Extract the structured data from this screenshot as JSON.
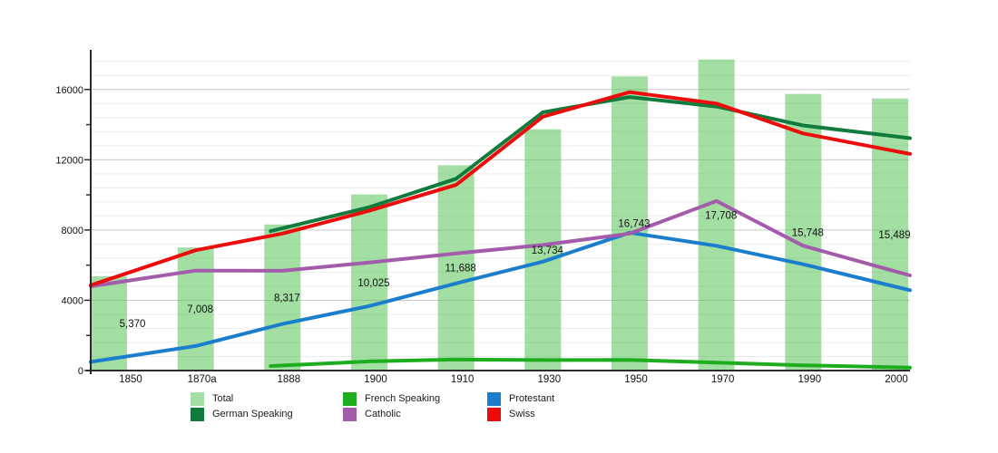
{
  "chart_data": {
    "type": "bar+line combo (municipality population statistics)",
    "title": "",
    "categories": [
      "1850",
      "1870a",
      "1888",
      "1900",
      "1910",
      "1930",
      "1950",
      "1970",
      "1990",
      "2000"
    ],
    "bar_series": {
      "name": "Total",
      "color": "#57c457",
      "apparent_color": "#a3d9a3",
      "values": [
        5370,
        7008,
        8317,
        10025,
        11688,
        13734,
        16743,
        17708,
        15748,
        15489
      ],
      "labels": [
        "5,370",
        "7,008",
        "8,317",
        "10,025",
        "11,688",
        "13,734",
        "16,743",
        "17,708",
        "15,748",
        "15,489"
      ]
    },
    "line_series": [
      {
        "name": "German Speaking",
        "color": "#117a3d",
        "values": [
          null,
          null,
          8100,
          9300,
          10920,
          14700,
          15570,
          15030,
          13950,
          13365
        ]
      },
      {
        "name": "French Speaking",
        "color": "#1ead1e",
        "values": [
          null,
          null,
          290,
          520,
          630,
          600,
          610,
          455,
          300,
          190
        ]
      },
      {
        "name": "Protestant",
        "color": "#1b7ecc",
        "values": [
          650,
          1400,
          2650,
          3670,
          4960,
          6200,
          7850,
          7100,
          6050,
          4850
        ]
      },
      {
        "name": "Catholic",
        "color": "#a25caa",
        "values": [
          4950,
          5690,
          5680,
          6150,
          6670,
          7150,
          7800,
          9650,
          7100,
          5730
        ]
      },
      {
        "name": "Swiss",
        "color": "#ec0c0c",
        "values": [
          5200,
          6850,
          7800,
          9100,
          10570,
          14450,
          15850,
          15200,
          13500,
          12550
        ]
      }
    ],
    "xlabel": "",
    "ylabel": "",
    "ylim": [
      0,
      18000
    ],
    "yticks": [
      0,
      4000,
      8000,
      12000,
      16000
    ],
    "ytick_labels": [
      "0",
      "4000",
      "8000",
      "12000",
      "16000"
    ],
    "grid": {
      "horizontal_minor_step": 800,
      "horizontal_major_step": 4000,
      "vertical": false
    },
    "legend_position": "bottom",
    "legend": [
      {
        "label": "Total",
        "color": "#a3d9a3"
      },
      {
        "label": "French Speaking",
        "color": "#1ead1e"
      },
      {
        "label": "Protestant",
        "color": "#1b7ecc"
      },
      {
        "label": "German Speaking",
        "color": "#117a3d"
      },
      {
        "label": "Catholic",
        "color": "#a25caa"
      },
      {
        "label": "Swiss",
        "color": "#ec0c0c"
      }
    ]
  }
}
